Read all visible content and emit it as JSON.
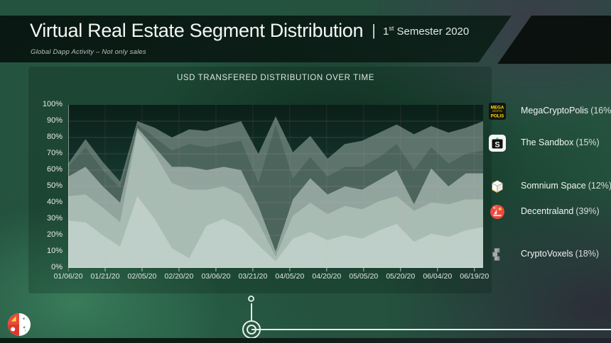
{
  "header": {
    "title": "Virtual Real Estate Segment Distribution",
    "separator": "|",
    "period_num": "1",
    "period_suffix": "st",
    "period_rest": " Semester 2020",
    "subtitle": "Global Dapp Activity – Not only sales"
  },
  "chart_data": {
    "type": "area",
    "stacked": true,
    "title": "USD TRANSFERED DISTRIBUTION OVER TIME",
    "unit": "%",
    "ylim": [
      0,
      100
    ],
    "grid": true,
    "y_axis_labels": [
      "0%",
      "10%",
      "20%",
      "30%",
      "40%",
      "50%",
      "60%",
      "70%",
      "80%",
      "90%",
      "100%"
    ],
    "x_tick_labels": [
      "01/06/20",
      "01/21/20",
      "02/05/20",
      "02/20/20",
      "03/06/20",
      "03/21/20",
      "04/05/20",
      "04/20/20",
      "05/05/20",
      "05/20/20",
      "06/04/20",
      "06/19/20"
    ],
    "stack_order": "bottom-to-top",
    "series": [
      {
        "name": "CryptoVoxels",
        "color": "#bdcfc8",
        "values": [
          29,
          28,
          20,
          13,
          44,
          30,
          12,
          6,
          26,
          30,
          25,
          14,
          4,
          18,
          22,
          17,
          20,
          18,
          23,
          27,
          16,
          21,
          19,
          23,
          25
        ]
      },
      {
        "name": "Decentraland",
        "color": "#a8bcb4",
        "values": [
          15,
          17,
          17,
          15,
          40,
          40,
          40,
          42,
          22,
          20,
          20,
          14,
          3,
          14,
          18,
          16,
          18,
          18,
          18,
          17,
          19,
          19,
          20,
          19,
          17
        ]
      },
      {
        "name": "Somnium Space",
        "color": "#91a59e",
        "values": [
          12,
          17,
          13,
          12,
          2,
          4,
          10,
          14,
          12,
          12,
          15,
          10,
          3,
          10,
          15,
          12,
          12,
          12,
          13,
          16,
          4,
          21,
          11,
          16,
          16
        ]
      },
      {
        "name": "The Sandbox",
        "color": "#4c655c",
        "values": [
          6,
          12,
          10,
          9,
          2,
          6,
          10,
          14,
          14,
          14,
          18,
          14,
          78,
          13,
          13,
          11,
          12,
          14,
          14,
          16,
          21,
          13,
          14,
          12,
          14
        ]
      },
      {
        "name": "MegaCryptoPolis",
        "color": "#5d746c",
        "values": [
          2,
          5,
          5,
          4,
          2,
          6,
          8,
          9,
          10,
          11,
          12,
          18,
          5,
          16,
          13,
          11,
          14,
          16,
          15,
          12,
          22,
          13,
          19,
          16,
          18
        ]
      }
    ],
    "legend": [
      {
        "label": "MegaCryptoPolis",
        "share": "(16%)",
        "icon": "megacryptopolis-logo"
      },
      {
        "label": "The Sandbox",
        "share": "(15%)",
        "icon": "sandbox-logo"
      },
      {
        "label": "Somnium Space",
        "share": "(12%)",
        "icon": "somnium-space-logo"
      },
      {
        "label": "Decentraland",
        "share": "(39%)",
        "icon": "decentraland-logo"
      },
      {
        "label": "CryptoVoxels",
        "share": "(18%)",
        "icon": "cryptovoxels-logo"
      }
    ],
    "legend_position": "right",
    "plot_bg_gradient": [
      "#0a1f18",
      "#123129",
      "#1e463a",
      "#2c5b4a"
    ],
    "gridline_color": "rgba(255,165,165,0.16)"
  },
  "icon_colors": {
    "mcp_yellow": "#ffe400",
    "sandbox_green": "#5ec9a8",
    "decentraland_red": "#ec4a41",
    "decentraland_sun": "#ffd23f",
    "voxels_gray": "#a7abb1",
    "footer_red": "#e84b3c",
    "footer_yellow": "#ffd940",
    "footer_green": "#3aa05a"
  }
}
